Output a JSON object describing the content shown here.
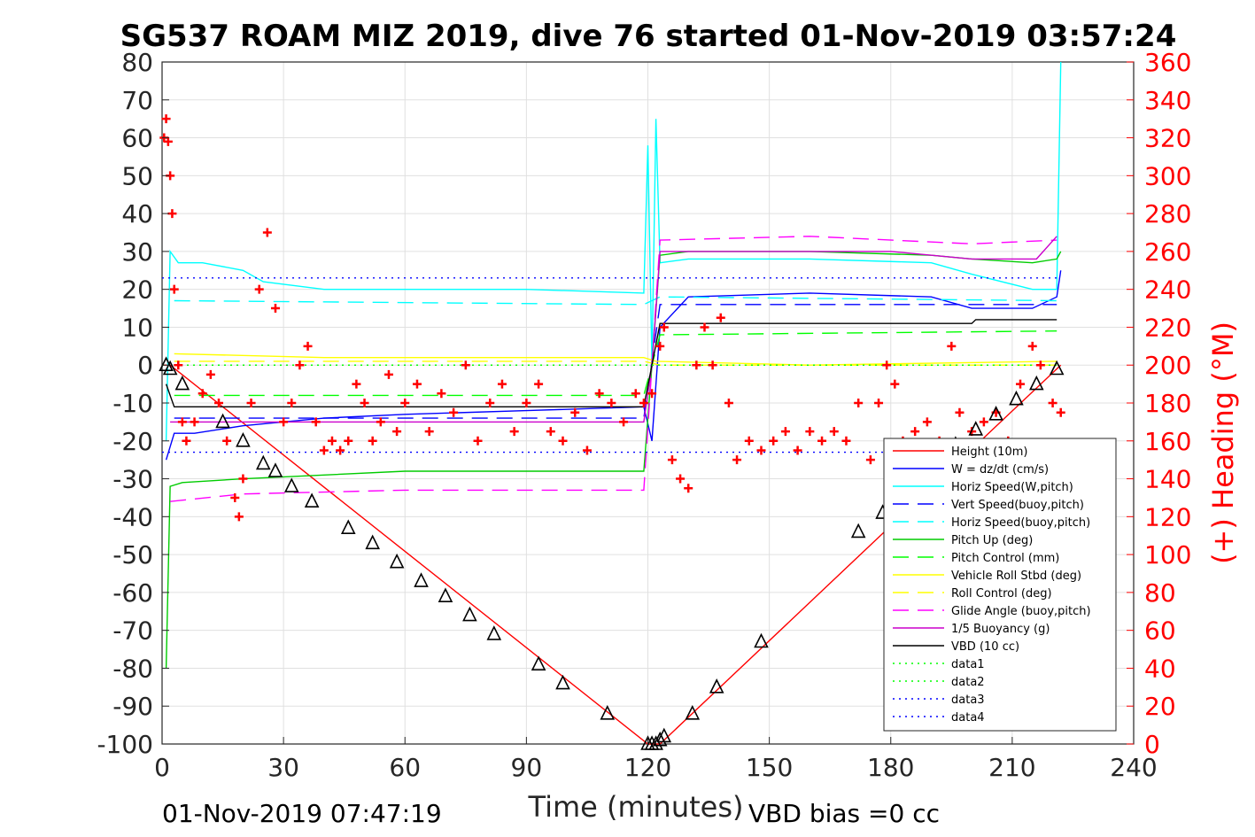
{
  "chart_data": {
    "type": "line",
    "title": "SG537 ROAM MIZ 2019, dive 76 started 01-Nov-2019 03:57:24",
    "xlabel": "Time (minutes)",
    "ylabel_right": "(+) Heading (°M)",
    "footer_left": "01-Nov-2019 07:47:19",
    "footer_right": "VBD bias =0 cc",
    "xlim": [
      0,
      240
    ],
    "ylim": [
      -100,
      80
    ],
    "ylim_right": [
      0,
      360
    ],
    "xticks": [
      0,
      30,
      60,
      90,
      120,
      150,
      180,
      210,
      240
    ],
    "yticks": [
      -100,
      -90,
      -80,
      -70,
      -60,
      -50,
      -40,
      -30,
      -20,
      -10,
      0,
      10,
      20,
      30,
      40,
      50,
      60,
      70,
      80
    ],
    "yticks_right": [
      0,
      20,
      40,
      60,
      80,
      100,
      120,
      140,
      160,
      180,
      200,
      220,
      240,
      260,
      280,
      300,
      320,
      340,
      360
    ],
    "grid": true,
    "legend_position": "bottom-right",
    "legend": [
      {
        "label": "Height (10m)",
        "color": "#ff0000",
        "dash": "solid"
      },
      {
        "label": "W = dz/dt (cm/s)",
        "color": "#0000ff",
        "dash": "solid"
      },
      {
        "label": "Horiz Speed(W,pitch)",
        "color": "#00ffff",
        "dash": "solid"
      },
      {
        "label": "Vert Speed(buoy,pitch)",
        "color": "#0000ff",
        "dash": "dashed"
      },
      {
        "label": "Horiz Speed(buoy,pitch)",
        "color": "#00ffff",
        "dash": "dashed"
      },
      {
        "label": "Pitch Up (deg)",
        "color": "#00cc00",
        "dash": "solid"
      },
      {
        "label": "Pitch Control (mm)",
        "color": "#00ff00",
        "dash": "dashed"
      },
      {
        "label": "Vehicle Roll Stbd (deg)",
        "color": "#ffff00",
        "dash": "solid"
      },
      {
        "label": "Roll Control (deg)",
        "color": "#ffff00",
        "dash": "dashed"
      },
      {
        "label": "Glide Angle (buoy,pitch)",
        "color": "#ff00ff",
        "dash": "dashed"
      },
      {
        "label": "1/5 Buoyancy (g)",
        "color": "#cc00cc",
        "dash": "solid"
      },
      {
        "label": "VBD (10 cc)",
        "color": "#000000",
        "dash": "solid"
      },
      {
        "label": "data1",
        "color": "#00ff00",
        "dash": "dotted"
      },
      {
        "label": "data2",
        "color": "#00ff00",
        "dash": "dotted"
      },
      {
        "label": "data3",
        "color": "#0000ff",
        "dash": "dotted"
      },
      {
        "label": "data4",
        "color": "#0000ff",
        "dash": "dotted"
      }
    ],
    "series": [
      {
        "name": "Height (10m)",
        "color": "#ff0000",
        "dash": "solid",
        "axis": "left",
        "x": [
          0,
          2,
          120,
          123,
          222
        ],
        "y": [
          0,
          0,
          -100,
          -100,
          0
        ]
      },
      {
        "name": "W = dz/dt (cm/s)",
        "color": "#0000ff",
        "dash": "solid",
        "axis": "left",
        "x": [
          1,
          3,
          8,
          20,
          40,
          60,
          90,
          119,
          121,
          123,
          130,
          160,
          190,
          200,
          215,
          221,
          222
        ],
        "y": [
          -25,
          -18,
          -18,
          -16,
          -14,
          -13,
          -12,
          -11,
          -20,
          10,
          18,
          19,
          18,
          15,
          15,
          18,
          25
        ]
      },
      {
        "name": "Horiz Speed(W,pitch)",
        "color": "#00ffff",
        "dash": "solid",
        "axis": "left",
        "x": [
          1,
          2,
          4,
          10,
          20,
          25,
          40,
          60,
          90,
          119,
          120,
          121,
          122,
          123,
          130,
          160,
          190,
          200,
          215,
          221,
          222
        ],
        "y": [
          -20,
          30,
          27,
          27,
          25,
          22,
          20,
          20,
          20,
          19,
          58,
          0,
          65,
          27,
          28,
          28,
          27,
          24,
          20,
          20,
          80
        ]
      },
      {
        "name": "Vert Speed(buoy,pitch)",
        "color": "#0000ff",
        "dash": "dashed",
        "axis": "left",
        "x": [
          3,
          119,
          123,
          221
        ],
        "y": [
          -14,
          -14,
          16,
          16
        ]
      },
      {
        "name": "Horiz Speed(buoy,pitch)",
        "color": "#00ffff",
        "dash": "dashed",
        "axis": "left",
        "x": [
          3,
          119,
          123,
          221
        ],
        "y": [
          17,
          16,
          18,
          17
        ]
      },
      {
        "name": "Pitch Up (deg)",
        "color": "#00cc00",
        "dash": "solid",
        "axis": "left",
        "x": [
          1,
          2,
          5,
          20,
          40,
          60,
          90,
          119,
          121,
          123,
          130,
          160,
          190,
          200,
          215,
          221,
          222
        ],
        "y": [
          -80,
          -32,
          -31,
          -30,
          -29,
          -28,
          -28,
          -28,
          0,
          29,
          30,
          30,
          29,
          28,
          27,
          28,
          30
        ]
      },
      {
        "name": "Pitch Control (mm)",
        "color": "#00ff00",
        "dash": "dashed",
        "axis": "left",
        "x": [
          3,
          119,
          123,
          221
        ],
        "y": [
          -8,
          -8,
          8,
          9
        ]
      },
      {
        "name": "Vehicle Roll Stbd (deg)",
        "color": "#ffff00",
        "dash": "solid",
        "axis": "left",
        "x": [
          3,
          40,
          80,
          119,
          122,
          160,
          221
        ],
        "y": [
          3,
          2,
          2,
          2,
          1,
          0,
          1
        ]
      },
      {
        "name": "Roll Control (deg)",
        "color": "#ffff00",
        "dash": "dashed",
        "axis": "left",
        "x": [
          3,
          119,
          123,
          221
        ],
        "y": [
          1,
          1,
          0,
          0
        ]
      },
      {
        "name": "Glide Angle (buoy,pitch)",
        "color": "#ff00ff",
        "dash": "dashed",
        "axis": "left",
        "x": [
          2,
          20,
          60,
          119,
          121,
          123,
          160,
          200,
          221
        ],
        "y": [
          -36,
          -34,
          -33,
          -33,
          0,
          33,
          34,
          32,
          33
        ]
      },
      {
        "name": "1/5 Buoyancy (g)",
        "color": "#cc00cc",
        "dash": "solid",
        "axis": "left",
        "x": [
          2,
          119,
          121,
          123,
          180,
          200,
          216,
          221
        ],
        "y": [
          -15,
          -15,
          0,
          30,
          30,
          28,
          28,
          34
        ]
      },
      {
        "name": "VBD (10 cc)",
        "color": "#000000",
        "dash": "solid",
        "axis": "left",
        "x": [
          1,
          3,
          119,
          121,
          123,
          200,
          201,
          221
        ],
        "y": [
          -5,
          -11,
          -11,
          0,
          11,
          11,
          12,
          12
        ]
      },
      {
        "name": "data1",
        "color": "#00ff00",
        "dash": "dotted",
        "axis": "left",
        "x": [
          0,
          222
        ],
        "y": [
          0,
          0
        ]
      },
      {
        "name": "data2",
        "color": "#00ff00",
        "dash": "dotted",
        "axis": "left",
        "x": [
          0,
          222
        ],
        "y": [
          0,
          0
        ]
      },
      {
        "name": "data3",
        "color": "#0000ff",
        "dash": "dotted",
        "axis": "left",
        "x": [
          0,
          222
        ],
        "y": [
          23,
          23
        ]
      },
      {
        "name": "data4",
        "color": "#0000ff",
        "dash": "dotted",
        "axis": "left",
        "x": [
          0,
          222
        ],
        "y": [
          -23,
          -23
        ]
      }
    ],
    "heading_series": {
      "name": "(+) Heading (°M)",
      "color": "#ff0000",
      "marker": "+",
      "axis": "right",
      "x": [
        0.5,
        1,
        1.5,
        2,
        2.5,
        3,
        4,
        5,
        6,
        8,
        10,
        12,
        14,
        16,
        18,
        19,
        20,
        22,
        24,
        26,
        28,
        30,
        32,
        34,
        36,
        38,
        40,
        42,
        44,
        46,
        48,
        50,
        52,
        54,
        56,
        58,
        60,
        63,
        66,
        69,
        72,
        75,
        78,
        81,
        84,
        87,
        90,
        93,
        96,
        99,
        102,
        105,
        108,
        111,
        114,
        117,
        119,
        121,
        123,
        124,
        126,
        128,
        130,
        132,
        134,
        136,
        138,
        140,
        142,
        145,
        148,
        151,
        154,
        157,
        160,
        163,
        166,
        169,
        172,
        175,
        177,
        179,
        181,
        183,
        186,
        189,
        192,
        195,
        197,
        200,
        203,
        206,
        209,
        212,
        215,
        217,
        220,
        222
      ],
      "y": [
        320,
        330,
        318,
        300,
        280,
        240,
        200,
        170,
        160,
        170,
        185,
        195,
        180,
        160,
        130,
        120,
        140,
        180,
        240,
        270,
        230,
        170,
        180,
        200,
        210,
        170,
        155,
        160,
        155,
        160,
        190,
        180,
        160,
        170,
        195,
        165,
        180,
        190,
        165,
        185,
        175,
        200,
        160,
        180,
        190,
        165,
        180,
        190,
        165,
        160,
        175,
        155,
        185,
        180,
        170,
        185,
        180,
        185,
        210,
        220,
        150,
        140,
        135,
        200,
        220,
        200,
        225,
        180,
        150,
        160,
        155,
        160,
        165,
        155,
        165,
        160,
        165,
        160,
        180,
        150,
        180,
        200,
        190,
        160,
        165,
        170,
        160,
        210,
        175,
        165,
        170,
        175,
        160,
        190,
        210,
        200,
        180,
        175
      ]
    },
    "marker_series": {
      "name": "Depth samples",
      "color": "#000000",
      "marker": "triangle",
      "x": [
        1,
        2,
        5,
        15,
        20,
        25,
        28,
        32,
        37,
        46,
        52,
        58,
        64,
        70,
        76,
        82,
        93,
        99,
        110,
        120,
        121,
        122,
        123,
        124,
        131,
        137,
        148,
        172,
        178,
        196,
        201,
        206,
        211,
        216,
        221
      ],
      "y": [
        0,
        -1,
        -5,
        -15,
        -20,
        -26,
        -28,
        -32,
        -36,
        -43,
        -47,
        -52,
        -57,
        -61,
        -66,
        -71,
        -79,
        -84,
        -92,
        -100,
        -100,
        -100,
        -99,
        -98,
        -92,
        -85,
        -73,
        -44,
        -39,
        -21,
        -17,
        -13,
        -9,
        -5,
        -1
      ]
    }
  }
}
